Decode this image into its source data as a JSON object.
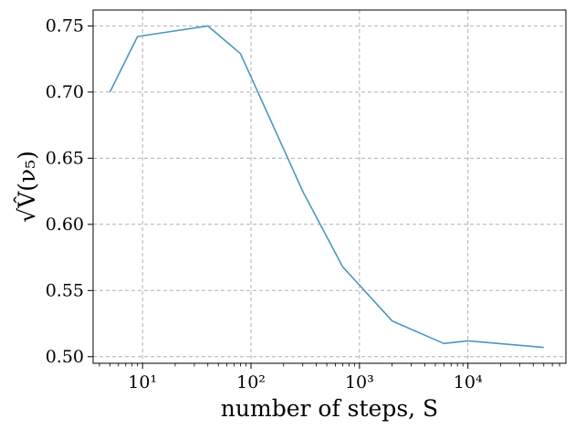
{
  "chart_data": {
    "type": "line",
    "title": "",
    "xlabel": "number of steps, S",
    "ylabel": "√V̂(ν₅)",
    "xscale": "log",
    "xlim": [
      3.5,
      80000
    ],
    "ylim": [
      0.495,
      0.762
    ],
    "grid": true,
    "x_ticks": [
      10,
      100,
      1000,
      10000
    ],
    "x_tick_labels": [
      "10¹",
      "10²",
      "10³",
      "10⁴"
    ],
    "y_ticks": [
      0.5,
      0.55,
      0.6,
      0.65,
      0.7,
      0.75
    ],
    "y_tick_labels": [
      "0.50",
      "0.55",
      "0.60",
      "0.65",
      "0.70",
      "0.75"
    ],
    "series": [
      {
        "x": [
          5,
          9,
          40,
          80,
          300,
          700,
          2000,
          6000,
          10000,
          50000
        ],
        "y": [
          0.7,
          0.742,
          0.75,
          0.729,
          0.625,
          0.568,
          0.527,
          0.51,
          0.512,
          0.507
        ]
      }
    ],
    "colors": {
      "line": "#4c96c2",
      "grid": "#b0b0b0",
      "axes": "#000000"
    }
  }
}
